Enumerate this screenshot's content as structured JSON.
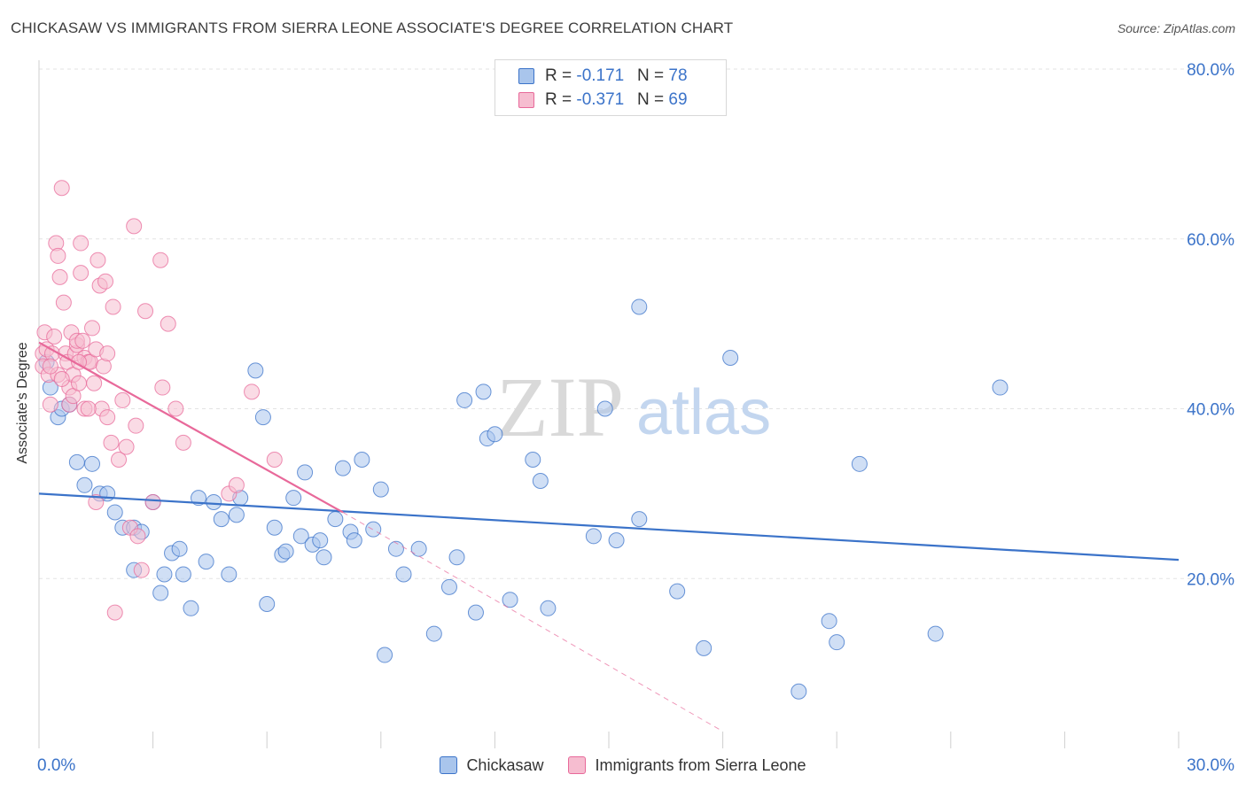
{
  "title": "CHICKASAW VS IMMIGRANTS FROM SIERRA LEONE ASSOCIATE'S DEGREE CORRELATION CHART",
  "source": "Source: ZipAtlas.com",
  "watermark": {
    "zip": "ZIP",
    "atlas": "atlas"
  },
  "colors": {
    "blue": "#3b73c9",
    "blue_fill": "#a9c5ec",
    "pink": "#e8699a",
    "pink_fill": "#f6bdd0",
    "grid": "#e3e3e3",
    "tick_label": "#3b73c9"
  },
  "legend_top": {
    "rows": [
      {
        "r_label": "R = ",
        "r_value": "-0.171",
        "n_label": "N = ",
        "n_value": "78",
        "color": "blue"
      },
      {
        "r_label": "R = ",
        "r_value": "-0.371",
        "n_label": "N = ",
        "n_value": "69",
        "color": "pink"
      }
    ]
  },
  "chart_data": {
    "type": "scatter",
    "title": "CHICKASAW VS IMMIGRANTS FROM SIERRA LEONE ASSOCIATE'S DEGREE CORRELATION CHART",
    "xlabel": "",
    "ylabel": "Associate's Degree",
    "xlim": [
      0,
      30
    ],
    "ylim": [
      0,
      80
    ],
    "x_tick_labels": [
      "0.0%",
      "30.0%"
    ],
    "y_tick_labels": [
      "20.0%",
      "40.0%",
      "60.0%",
      "80.0%"
    ],
    "y_ticks": [
      20,
      40,
      60,
      80
    ],
    "grid": true,
    "legend_position": "bottom",
    "series": [
      {
        "name": "Chickasaw",
        "color": "blue",
        "trend": {
          "x": [
            0,
            30
          ],
          "y": [
            30.0,
            22.2
          ],
          "style": "solid"
        },
        "points": [
          [
            0.2,
            45.5
          ],
          [
            0.3,
            42.5
          ],
          [
            0.5,
            39.0
          ],
          [
            0.6,
            40.0
          ],
          [
            0.8,
            40.5
          ],
          [
            1.0,
            33.7
          ],
          [
            1.2,
            31.0
          ],
          [
            1.4,
            33.5
          ],
          [
            1.6,
            30.0
          ],
          [
            1.8,
            30.0
          ],
          [
            2.0,
            27.8
          ],
          [
            2.2,
            26.0
          ],
          [
            2.5,
            26.0
          ],
          [
            2.7,
            25.5
          ],
          [
            2.5,
            21.0
          ],
          [
            3.0,
            29.0
          ],
          [
            3.2,
            18.3
          ],
          [
            3.3,
            20.5
          ],
          [
            3.5,
            23.0
          ],
          [
            3.7,
            23.5
          ],
          [
            3.8,
            20.5
          ],
          [
            4.0,
            16.5
          ],
          [
            4.2,
            29.5
          ],
          [
            4.4,
            22.0
          ],
          [
            4.6,
            29.0
          ],
          [
            4.8,
            27.0
          ],
          [
            5.0,
            20.5
          ],
          [
            5.2,
            27.5
          ],
          [
            5.3,
            29.5
          ],
          [
            5.7,
            44.5
          ],
          [
            5.9,
            39.0
          ],
          [
            6.0,
            17.0
          ],
          [
            6.2,
            26.0
          ],
          [
            6.4,
            22.8
          ],
          [
            6.5,
            23.2
          ],
          [
            6.7,
            29.5
          ],
          [
            6.9,
            25.0
          ],
          [
            7.0,
            32.5
          ],
          [
            7.2,
            24.0
          ],
          [
            7.4,
            24.5
          ],
          [
            7.5,
            22.5
          ],
          [
            7.8,
            27.0
          ],
          [
            8.0,
            33.0
          ],
          [
            8.2,
            25.5
          ],
          [
            8.3,
            24.5
          ],
          [
            8.5,
            34.0
          ],
          [
            8.8,
            25.8
          ],
          [
            9.0,
            30.5
          ],
          [
            9.1,
            11.0
          ],
          [
            9.4,
            23.5
          ],
          [
            9.6,
            20.5
          ],
          [
            10.0,
            23.5
          ],
          [
            10.4,
            13.5
          ],
          [
            10.8,
            19.0
          ],
          [
            11.0,
            22.5
          ],
          [
            11.2,
            41.0
          ],
          [
            11.5,
            16.0
          ],
          [
            11.7,
            42.0
          ],
          [
            11.8,
            36.5
          ],
          [
            12.0,
            37.0
          ],
          [
            12.4,
            17.5
          ],
          [
            13.0,
            34.0
          ],
          [
            13.2,
            31.5
          ],
          [
            13.4,
            16.5
          ],
          [
            14.6,
            25.0
          ],
          [
            14.9,
            40.0
          ],
          [
            15.2,
            24.5
          ],
          [
            15.8,
            27.0
          ],
          [
            15.8,
            52.0
          ],
          [
            16.8,
            18.5
          ],
          [
            17.5,
            11.8
          ],
          [
            18.2,
            46.0
          ],
          [
            20.0,
            6.7
          ],
          [
            20.8,
            15.0
          ],
          [
            21.0,
            12.5
          ],
          [
            21.6,
            33.5
          ],
          [
            23.6,
            13.5
          ],
          [
            25.3,
            42.5
          ]
        ]
      },
      {
        "name": "Immigrants from Sierra Leone",
        "color": "pink",
        "trend": {
          "x": [
            0,
            8
          ],
          "y": [
            47.8,
            27.8
          ],
          "style": "solid",
          "dashed_extension": {
            "x": [
              8,
              18
            ],
            "y": [
              27.8,
              2.0
            ]
          }
        },
        "points": [
          [
            0.1,
            46.5
          ],
          [
            0.1,
            45.0
          ],
          [
            0.15,
            49.0
          ],
          [
            0.2,
            47.0
          ],
          [
            0.25,
            44.0
          ],
          [
            0.3,
            40.5
          ],
          [
            0.35,
            46.5
          ],
          [
            0.4,
            48.5
          ],
          [
            0.45,
            59.5
          ],
          [
            0.5,
            58.0
          ],
          [
            0.5,
            44.0
          ],
          [
            0.55,
            55.5
          ],
          [
            0.6,
            66.0
          ],
          [
            0.65,
            52.5
          ],
          [
            0.7,
            46.5
          ],
          [
            0.75,
            45.5
          ],
          [
            0.8,
            42.5
          ],
          [
            0.8,
            40.5
          ],
          [
            0.85,
            49.0
          ],
          [
            0.9,
            44.0
          ],
          [
            0.9,
            41.5
          ],
          [
            0.95,
            46.5
          ],
          [
            1.0,
            47.5
          ],
          [
            1.0,
            48.0
          ],
          [
            1.05,
            43.0
          ],
          [
            1.1,
            59.5
          ],
          [
            1.1,
            56.0
          ],
          [
            1.15,
            48.0
          ],
          [
            1.2,
            40.0
          ],
          [
            1.2,
            46.0
          ],
          [
            1.3,
            45.5
          ],
          [
            1.35,
            45.5
          ],
          [
            1.4,
            49.5
          ],
          [
            1.5,
            29.0
          ],
          [
            1.5,
            47.0
          ],
          [
            1.55,
            57.5
          ],
          [
            1.6,
            54.5
          ],
          [
            1.65,
            40.0
          ],
          [
            1.7,
            45.0
          ],
          [
            1.75,
            55.0
          ],
          [
            1.8,
            39.0
          ],
          [
            1.9,
            36.0
          ],
          [
            1.95,
            52.0
          ],
          [
            2.1,
            34.0
          ],
          [
            2.2,
            41.0
          ],
          [
            2.4,
            26.0
          ],
          [
            2.5,
            61.5
          ],
          [
            2.55,
            38.0
          ],
          [
            2.6,
            25.0
          ],
          [
            2.7,
            21.0
          ],
          [
            2.8,
            51.5
          ],
          [
            3.2,
            57.5
          ],
          [
            3.25,
            42.5
          ],
          [
            3.4,
            50.0
          ],
          [
            3.6,
            40.0
          ],
          [
            3.8,
            36.0
          ],
          [
            5.0,
            30.0
          ],
          [
            5.2,
            31.0
          ],
          [
            5.6,
            42.0
          ],
          [
            6.2,
            34.0
          ],
          [
            2.0,
            16.0
          ],
          [
            1.3,
            40.0
          ],
          [
            0.6,
            43.5
          ],
          [
            1.05,
            45.5
          ],
          [
            1.8,
            46.5
          ],
          [
            0.3,
            45.0
          ],
          [
            1.45,
            43.0
          ],
          [
            2.3,
            35.5
          ],
          [
            3.0,
            29.0
          ]
        ]
      }
    ]
  },
  "legend_bottom": [
    {
      "label": "Chickasaw",
      "color": "blue"
    },
    {
      "label": "Immigrants from Sierra Leone",
      "color": "pink"
    }
  ]
}
